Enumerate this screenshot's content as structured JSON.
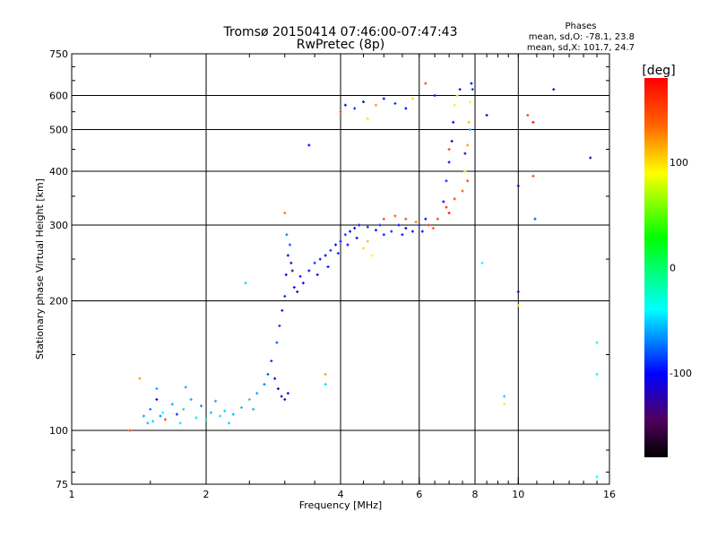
{
  "chart_data": {
    "type": "scatter",
    "title": "Tromsø 20150414 07:46:00-07:47:43",
    "subtitle": "RwPretec (8p)",
    "stats": {
      "heading": "Phases",
      "o_line": "mean, sd,O: -78.1, 23.8",
      "x_line": "mean, sd,X: 101.7, 24.7"
    },
    "xlabel": "Frequency [MHz]",
    "ylabel": "Stationary phase Virtual Height [km]",
    "xscale": "log",
    "yscale": "log",
    "xlim": [
      1,
      16
    ],
    "ylim": [
      75,
      750
    ],
    "xticks": [
      1,
      2,
      4,
      6,
      8,
      10,
      16
    ],
    "yticks": [
      75,
      100,
      200,
      300,
      400,
      500,
      600,
      750
    ],
    "xgrid": [
      2,
      4,
      6,
      8,
      10
    ],
    "ygrid": [
      100,
      200,
      300,
      400,
      500,
      600
    ],
    "grid": true,
    "colorbar": {
      "label": "[deg]",
      "range": [
        -180,
        180
      ],
      "ticks": [
        100,
        0,
        -100
      ],
      "placement": "right"
    },
    "points_format": [
      "frequency_MHz",
      "height_km",
      "phase_deg"
    ],
    "points": [
      [
        1.45,
        108,
        -60
      ],
      [
        1.5,
        112,
        -70
      ],
      [
        1.52,
        105,
        -50
      ],
      [
        1.55,
        118,
        -110
      ],
      [
        1.6,
        110,
        -40
      ],
      [
        1.62,
        106,
        150
      ],
      [
        1.68,
        115,
        -60
      ],
      [
        1.72,
        109,
        -90
      ],
      [
        1.78,
        112,
        -50
      ],
      [
        1.85,
        118,
        -60
      ],
      [
        1.9,
        107,
        -45
      ],
      [
        1.95,
        114,
        -70
      ],
      [
        2.0,
        106,
        -50
      ],
      [
        2.05,
        110,
        -55
      ],
      [
        2.1,
        117,
        -60
      ],
      [
        2.15,
        108,
        -45
      ],
      [
        2.2,
        111,
        -50
      ],
      [
        2.3,
        109,
        -60
      ],
      [
        2.4,
        113,
        -55
      ],
      [
        2.5,
        118,
        -50
      ],
      [
        2.6,
        122,
        -60
      ],
      [
        2.7,
        128,
        -70
      ],
      [
        2.75,
        135,
        -80
      ],
      [
        2.8,
        145,
        -90
      ],
      [
        2.85,
        132,
        -110
      ],
      [
        2.9,
        125,
        -120
      ],
      [
        2.95,
        120,
        -115
      ],
      [
        3.0,
        118,
        -130
      ],
      [
        3.05,
        122,
        -100
      ],
      [
        2.88,
        160,
        -80
      ],
      [
        2.92,
        175,
        -90
      ],
      [
        2.96,
        190,
        -100
      ],
      [
        1.42,
        132,
        120
      ],
      [
        1.55,
        125,
        -60
      ],
      [
        1.8,
        126,
        -60
      ],
      [
        2.45,
        220,
        -50
      ],
      [
        1.35,
        100,
        150
      ],
      [
        1.48,
        104,
        -55
      ],
      [
        1.58,
        108,
        -65
      ],
      [
        1.75,
        104,
        -45
      ],
      [
        2.25,
        104,
        -50
      ],
      [
        2.55,
        112,
        -55
      ],
      [
        3.0,
        205,
        -90
      ],
      [
        3.02,
        230,
        -100
      ],
      [
        3.05,
        255,
        -110
      ],
      [
        3.08,
        270,
        -80
      ],
      [
        3.1,
        245,
        -120
      ],
      [
        3.03,
        285,
        -70
      ],
      [
        3.0,
        320,
        130
      ],
      [
        3.15,
        215,
        -110
      ],
      [
        3.2,
        210,
        -120
      ],
      [
        3.3,
        220,
        -100
      ],
      [
        3.12,
        235,
        -140
      ],
      [
        3.25,
        228,
        -100
      ],
      [
        3.4,
        235,
        -100
      ],
      [
        3.5,
        245,
        -90
      ],
      [
        3.6,
        250,
        -95
      ],
      [
        3.7,
        255,
        -100
      ],
      [
        3.8,
        262,
        -90
      ],
      [
        3.9,
        270,
        -100
      ],
      [
        4.0,
        275,
        -95
      ],
      [
        4.1,
        285,
        -90
      ],
      [
        4.2,
        290,
        -100
      ],
      [
        4.3,
        295,
        -110
      ],
      [
        4.4,
        300,
        -100
      ],
      [
        4.6,
        297,
        -90
      ],
      [
        4.8,
        292,
        -100
      ],
      [
        5.0,
        285,
        -95
      ],
      [
        5.2,
        290,
        -90
      ],
      [
        5.4,
        300,
        -100
      ],
      [
        5.6,
        295,
        -110
      ],
      [
        5.8,
        290,
        -100
      ],
      [
        6.0,
        300,
        -95
      ],
      [
        6.2,
        310,
        -100
      ],
      [
        3.55,
        230,
        -110
      ],
      [
        3.75,
        240,
        -100
      ],
      [
        3.95,
        258,
        -90
      ],
      [
        4.15,
        270,
        -100
      ],
      [
        4.35,
        280,
        -110
      ],
      [
        4.9,
        300,
        -90
      ],
      [
        5.5,
        285,
        -100
      ],
      [
        6.1,
        290,
        -100
      ],
      [
        4.5,
        265,
        100
      ],
      [
        4.7,
        255,
        90
      ],
      [
        4.6,
        275,
        110
      ],
      [
        5.0,
        310,
        150
      ],
      [
        5.3,
        315,
        140
      ],
      [
        5.6,
        310,
        150
      ],
      [
        5.9,
        305,
        130
      ],
      [
        6.3,
        300,
        160
      ],
      [
        6.6,
        310,
        150
      ],
      [
        6.9,
        330,
        160
      ],
      [
        7.2,
        345,
        150
      ],
      [
        7.5,
        360,
        140
      ],
      [
        7.7,
        380,
        150
      ],
      [
        6.45,
        295,
        140
      ],
      [
        7.0,
        320,
        170
      ],
      [
        6.8,
        340,
        -100
      ],
      [
        6.9,
        380,
        -90
      ],
      [
        7.0,
        420,
        -100
      ],
      [
        7.1,
        470,
        -110
      ],
      [
        7.15,
        520,
        -100
      ],
      [
        7.2,
        570,
        80
      ],
      [
        7.3,
        600,
        100
      ],
      [
        7.0,
        450,
        150
      ],
      [
        7.6,
        400,
        100
      ],
      [
        7.7,
        460,
        120
      ],
      [
        7.75,
        520,
        110
      ],
      [
        7.8,
        580,
        90
      ],
      [
        7.85,
        640,
        -100
      ],
      [
        7.9,
        620,
        -90
      ],
      [
        7.8,
        500,
        -60
      ],
      [
        7.6,
        440,
        -120
      ],
      [
        7.4,
        620,
        -100
      ],
      [
        4.0,
        550,
        150
      ],
      [
        4.1,
        570,
        -100
      ],
      [
        4.3,
        560,
        -90
      ],
      [
        4.5,
        580,
        -100
      ],
      [
        4.6,
        530,
        100
      ],
      [
        4.8,
        570,
        120
      ],
      [
        5.0,
        590,
        -100
      ],
      [
        5.3,
        575,
        -90
      ],
      [
        5.6,
        560,
        -100
      ],
      [
        5.8,
        590,
        100
      ],
      [
        6.2,
        640,
        150
      ],
      [
        6.5,
        600,
        -100
      ],
      [
        8.5,
        540,
        -120
      ],
      [
        10.5,
        540,
        150
      ],
      [
        10.8,
        520,
        180
      ],
      [
        10.8,
        390,
        150
      ],
      [
        12,
        620,
        -100
      ],
      [
        14.5,
        430,
        -130
      ],
      [
        10,
        370,
        -110
      ],
      [
        10.9,
        310,
        -80
      ],
      [
        10,
        210,
        -100
      ],
      [
        10,
        195,
        100
      ],
      [
        8.3,
        245,
        -40
      ],
      [
        9.3,
        120,
        -50
      ],
      [
        9.3,
        115,
        80
      ],
      [
        15,
        160,
        -30
      ],
      [
        15,
        135,
        -40
      ],
      [
        15,
        78,
        -40
      ],
      [
        3.7,
        135,
        120
      ],
      [
        3.7,
        128,
        -50
      ],
      [
        3.4,
        460,
        -110
      ]
    ]
  }
}
